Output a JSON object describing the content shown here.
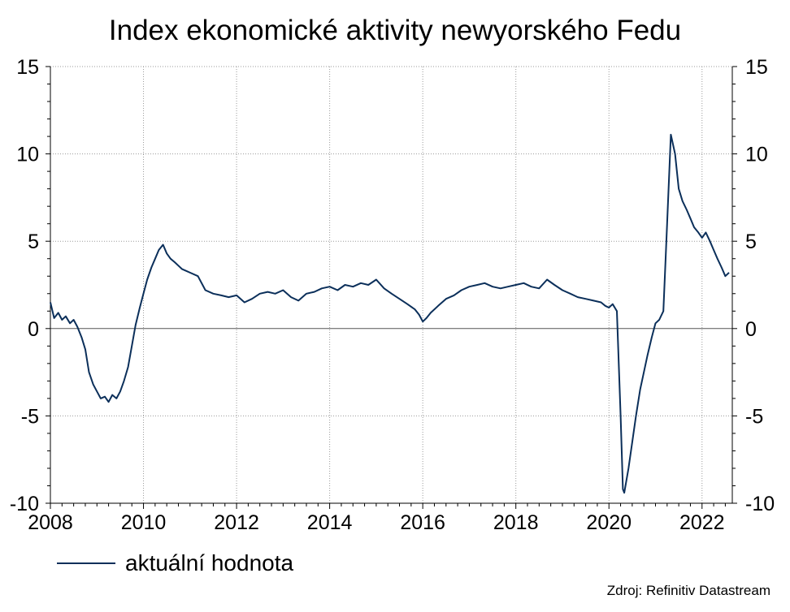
{
  "chart_data": {
    "type": "line",
    "title": "Index ekonomické aktivity newyorského Fedu",
    "xlabel": "",
    "ylabel": "",
    "xlim": [
      2008.0,
      2022.65
    ],
    "ylim": [
      -10,
      15
    ],
    "x_ticks": [
      2008,
      2010,
      2012,
      2014,
      2016,
      2018,
      2020,
      2022
    ],
    "y_ticks": [
      15,
      10,
      5,
      0,
      -5,
      -10
    ],
    "grid": true,
    "legend_position": "bottom-left",
    "secondary_y_axis": true,
    "series": [
      {
        "name": "aktuální hodnota",
        "color": "#0b2f5a",
        "x": [
          2008.0,
          2008.08,
          2008.17,
          2008.25,
          2008.33,
          2008.42,
          2008.5,
          2008.58,
          2008.67,
          2008.75,
          2008.83,
          2008.92,
          2009.0,
          2009.08,
          2009.17,
          2009.25,
          2009.33,
          2009.42,
          2009.5,
          2009.58,
          2009.67,
          2009.75,
          2009.83,
          2009.92,
          2010.0,
          2010.08,
          2010.17,
          2010.25,
          2010.33,
          2010.42,
          2010.5,
          2010.58,
          2010.67,
          2010.75,
          2010.83,
          2010.92,
          2011.0,
          2011.17,
          2011.33,
          2011.5,
          2011.67,
          2011.83,
          2012.0,
          2012.17,
          2012.33,
          2012.5,
          2012.67,
          2012.83,
          2013.0,
          2013.17,
          2013.33,
          2013.5,
          2013.67,
          2013.83,
          2014.0,
          2014.17,
          2014.33,
          2014.5,
          2014.67,
          2014.83,
          2015.0,
          2015.17,
          2015.33,
          2015.5,
          2015.67,
          2015.83,
          2015.92,
          2016.0,
          2016.08,
          2016.17,
          2016.33,
          2016.5,
          2016.67,
          2016.83,
          2017.0,
          2017.17,
          2017.33,
          2017.5,
          2017.67,
          2017.83,
          2018.0,
          2018.17,
          2018.33,
          2018.5,
          2018.67,
          2018.83,
          2019.0,
          2019.17,
          2019.33,
          2019.5,
          2019.67,
          2019.83,
          2019.92,
          2020.0,
          2020.08,
          2020.17,
          2020.25,
          2020.3,
          2020.33,
          2020.42,
          2020.5,
          2020.58,
          2020.67,
          2020.75,
          2020.83,
          2020.92,
          2021.0,
          2021.08,
          2021.17,
          2021.25,
          2021.33,
          2021.42,
          2021.5,
          2021.58,
          2021.67,
          2021.75,
          2021.83,
          2021.92,
          2022.0,
          2022.08,
          2022.17,
          2022.25,
          2022.33,
          2022.42,
          2022.5,
          2022.58
        ],
        "values": [
          1.5,
          0.6,
          0.9,
          0.5,
          0.7,
          0.3,
          0.5,
          0.1,
          -0.5,
          -1.2,
          -2.5,
          -3.2,
          -3.6,
          -4.0,
          -3.9,
          -4.2,
          -3.8,
          -4.0,
          -3.6,
          -3.0,
          -2.2,
          -1.0,
          0.2,
          1.2,
          2.0,
          2.8,
          3.5,
          4.0,
          4.5,
          4.8,
          4.3,
          4.0,
          3.8,
          3.6,
          3.4,
          3.3,
          3.2,
          3.0,
          2.2,
          2.0,
          1.9,
          1.8,
          1.9,
          1.5,
          1.7,
          2.0,
          2.1,
          2.0,
          2.2,
          1.8,
          1.6,
          2.0,
          2.1,
          2.3,
          2.4,
          2.2,
          2.5,
          2.4,
          2.6,
          2.5,
          2.8,
          2.3,
          2.0,
          1.7,
          1.4,
          1.1,
          0.8,
          0.4,
          0.6,
          0.9,
          1.3,
          1.7,
          1.9,
          2.2,
          2.4,
          2.5,
          2.6,
          2.4,
          2.3,
          2.4,
          2.5,
          2.6,
          2.4,
          2.3,
          2.8,
          2.5,
          2.2,
          2.0,
          1.8,
          1.7,
          1.6,
          1.5,
          1.3,
          1.2,
          1.4,
          1.0,
          -5.0,
          -9.2,
          -9.4,
          -8.0,
          -6.5,
          -5.0,
          -3.5,
          -2.5,
          -1.5,
          -0.5,
          0.3,
          0.5,
          1.0,
          6.0,
          11.1,
          10.0,
          8.0,
          7.3,
          6.8,
          6.3,
          5.8,
          5.5,
          5.2,
          5.5,
          5.0,
          4.5,
          4.0,
          3.5,
          3.0,
          3.2
        ]
      }
    ]
  },
  "legend": {
    "label": "aktuální hodnota"
  },
  "source": "Zdroj: Refinitiv Datastream"
}
